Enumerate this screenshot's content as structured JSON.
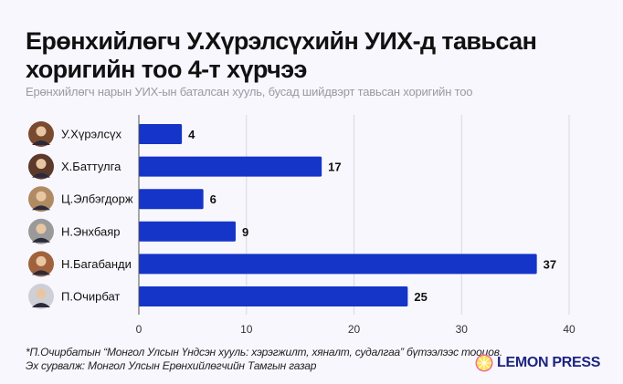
{
  "header": {
    "title_line1": "Ерөнхийлөгч У.Хүрэлсүхийн УИХ-д тавьсан",
    "title_line2": "хоригийн тоо 4-т хүрчээ",
    "subtitle": "Ерөнхийлөгч нарын УИХ-ын баталсан хууль, бусад шийдвэрт тавьсан хоригийн тоо"
  },
  "chart_data": {
    "type": "bar",
    "orientation": "horizontal",
    "categories": [
      "У.Хүрэлсүх",
      "Х.Баттулга",
      "Ц.Элбэгдорж",
      "Н.Энхбаяр",
      "Н.Багабанди",
      "П.Очирбат"
    ],
    "values": [
      4,
      17,
      6,
      9,
      37,
      25
    ],
    "xlim": [
      0,
      40
    ],
    "xticks": [
      "0",
      "10",
      "20",
      "30",
      "40"
    ],
    "bar_color": "#1435c8",
    "grid": true,
    "data_labels": true,
    "legend": "none"
  },
  "footer": {
    "note": "*П.Очирбатын “Монгол Улсын Үндсэн хууль: хэрэгжилт, хяналт, судалгаа” бүтээлээс тооцов.",
    "source": "Эх сурвалж: Монгол Улсын Ерөнхийлөгчийн Тамгын газар"
  },
  "logo": {
    "text": "LEMON PRESS",
    "color": "#1c2580",
    "accent": "#f5c800"
  }
}
